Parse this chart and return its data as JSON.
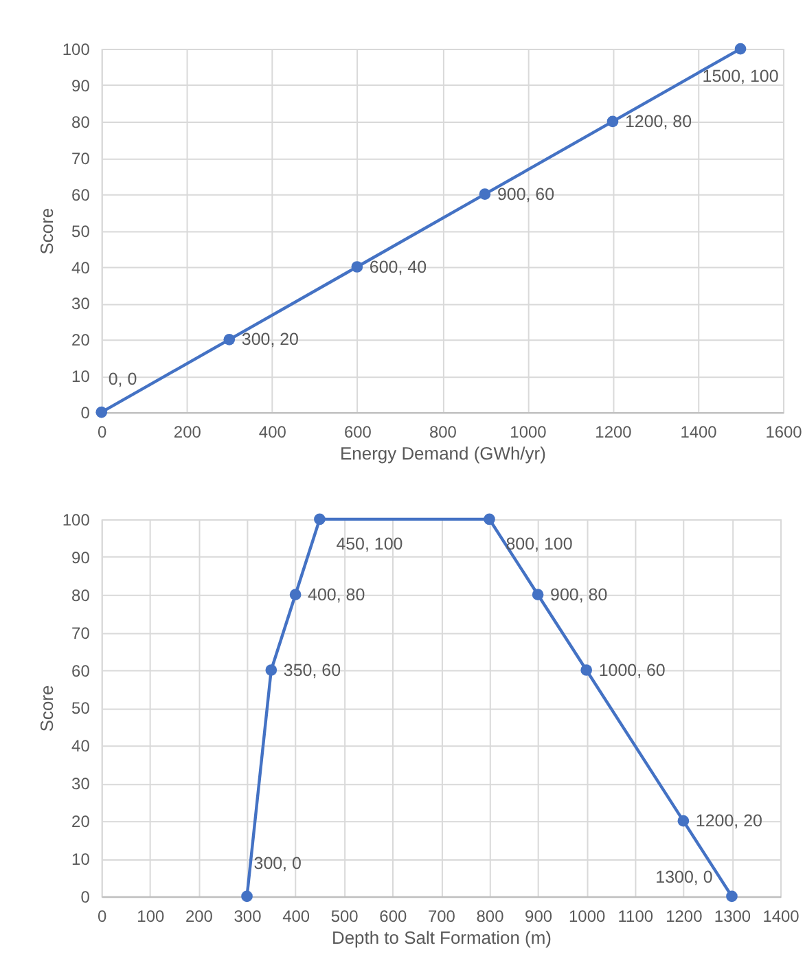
{
  "chart_data": [
    {
      "type": "line",
      "x": [
        0,
        300,
        600,
        900,
        1200,
        1500
      ],
      "values": [
        0,
        20,
        40,
        60,
        80,
        100
      ],
      "color": "#4472c4",
      "marker": "circle",
      "line_style": "solid",
      "value_labels": [
        "0, 0",
        "300, 20",
        "600, 40",
        "900, 60",
        "1200, 80",
        "1500, 100"
      ],
      "xlabel": "Energy Demand (GWh/yr)",
      "ylabel": "Score",
      "xlim": [
        0,
        1600
      ],
      "xticks": [
        0,
        200,
        400,
        600,
        800,
        1000,
        1200,
        1400,
        1600
      ],
      "ylim": [
        0,
        100
      ],
      "yticks": [
        0,
        10,
        20,
        30,
        40,
        50,
        60,
        70,
        80,
        90,
        100
      ],
      "grid": true
    },
    {
      "type": "line",
      "x": [
        300,
        350,
        400,
        450,
        800,
        900,
        1000,
        1200,
        1300
      ],
      "values": [
        0,
        60,
        80,
        100,
        100,
        80,
        60,
        20,
        0
      ],
      "color": "#4472c4",
      "marker": "circle",
      "line_style": "solid",
      "value_labels": [
        "300, 0",
        "350, 60",
        "400, 80",
        "450, 100",
        "800, 100",
        "900, 80",
        "1000, 60",
        "1200, 20",
        "1300, 0"
      ],
      "xlabel": "Depth to Salt Formation (m)",
      "ylabel": "Score",
      "xlim": [
        0,
        1400
      ],
      "xticks": [
        0,
        100,
        200,
        300,
        400,
        500,
        600,
        700,
        800,
        900,
        1000,
        1100,
        1200,
        1300,
        1400
      ],
      "ylim": [
        0,
        100
      ],
      "yticks": [
        0,
        10,
        20,
        30,
        40,
        50,
        60,
        70,
        80,
        90,
        100
      ],
      "grid": true
    }
  ]
}
